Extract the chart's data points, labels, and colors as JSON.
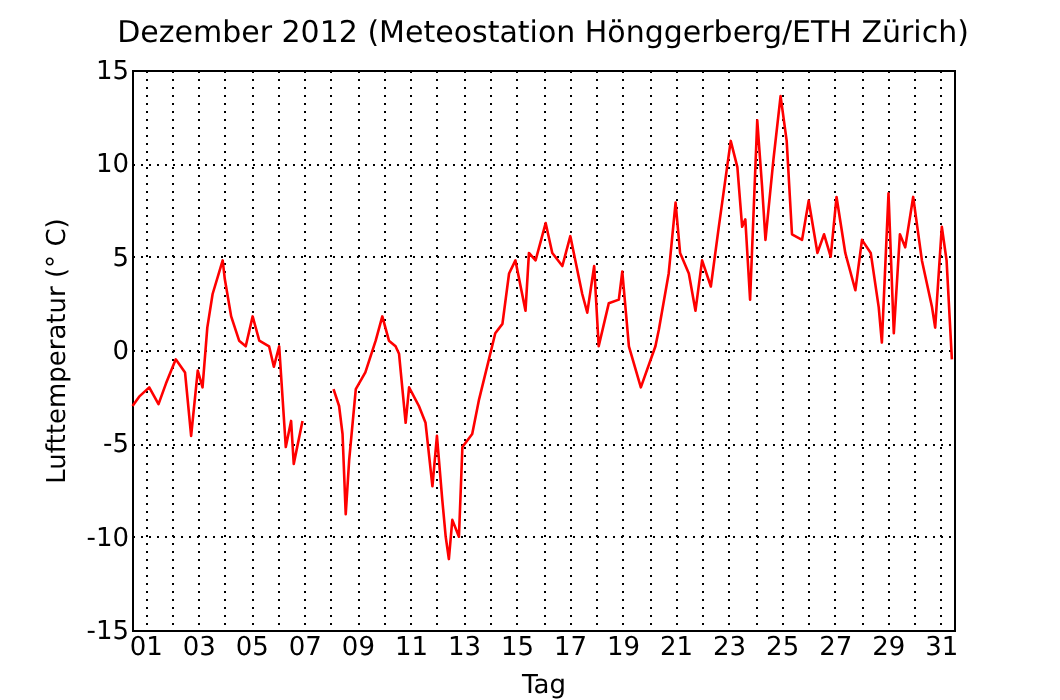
{
  "chart_data": {
    "type": "line",
    "title": "Dezember 2012  (Meteostation Hönggerberg/ETH Zürich)",
    "xlabel": "Tag",
    "ylabel": "Lufttemperatur (° C)",
    "x": [
      0.52,
      0.77,
      1.15,
      1.5,
      1.78,
      2.15,
      2.5,
      2.73,
      2.98,
      3.16,
      3.34,
      3.54,
      3.92,
      4.0,
      4.24,
      4.54,
      4.79,
      5.05,
      5.3,
      5.67,
      5.85,
      6.05,
      6.3,
      6.5,
      6.6,
      6.93,
      7.5,
      8.1,
      8.31,
      8.44,
      8.56,
      8.69,
      8.94,
      9.3,
      9.69,
      9.94,
      10.19,
      10.44,
      10.57,
      10.82,
      10.95,
      11.32,
      11.57,
      11.83,
      12.0,
      12.2,
      12.33,
      12.45,
      12.58,
      12.83,
      12.96,
      13.33,
      13.58,
      13.96,
      14.2,
      14.47,
      14.72,
      14.96,
      15.34,
      15.47,
      15.72,
      16.1,
      16.35,
      16.73,
      17.03,
      17.48,
      17.67,
      17.93,
      18.1,
      18.48,
      18.86,
      18.99,
      19.24,
      19.69,
      20.24,
      20.37,
      20.74,
      21.0,
      21.17,
      21.5,
      21.75,
      22.0,
      22.33,
      22.63,
      23.08,
      23.33,
      23.51,
      23.63,
      23.81,
      24.08,
      24.26,
      24.39,
      24.69,
      24.96,
      25.19,
      25.39,
      25.77,
      26.02,
      26.35,
      26.6,
      26.85,
      27.07,
      27.4,
      27.78,
      28.03,
      28.36,
      28.66,
      28.78,
      29.03,
      29.23,
      29.46,
      29.66,
      29.96,
      30.29,
      30.67,
      30.79,
      31.04,
      31.22,
      31.42
    ],
    "series": [
      {
        "color": "#ff0000",
        "values": [
          -3.0,
          -2.5,
          -2.0,
          -2.9,
          -1.8,
          -0.5,
          -1.2,
          -4.6,
          -1.1,
          -2.0,
          1.2,
          3.0,
          4.8,
          3.8,
          1.8,
          0.5,
          0.2,
          1.8,
          0.5,
          0.2,
          -0.9,
          0.2,
          -5.2,
          -3.8,
          -6.1,
          -3.8,
          null,
          -2.1,
          -3.0,
          -4.5,
          -8.8,
          -5.9,
          -2.1,
          -1.2,
          0.5,
          1.8,
          0.5,
          0.2,
          -0.2,
          -3.9,
          -2.0,
          -3.0,
          -3.9,
          -7.3,
          -4.6,
          -8.0,
          -10.0,
          -11.2,
          -9.1,
          -10.0,
          -5.2,
          -4.5,
          -2.7,
          -0.5,
          0.9,
          1.4,
          4.1,
          4.8,
          2.1,
          5.2,
          4.8,
          6.8,
          5.2,
          4.5,
          6.1,
          3.0,
          2.0,
          4.5,
          0.2,
          2.5,
          2.7,
          4.2,
          0.2,
          -2.0,
          0.2,
          1.1,
          4.1,
          7.9,
          5.2,
          4.1,
          2.1,
          4.8,
          3.4,
          6.6,
          11.2,
          9.8,
          6.6,
          7.0,
          2.7,
          12.3,
          8.8,
          5.9,
          10.2,
          13.6,
          11.2,
          6.2,
          5.9,
          8.0,
          5.2,
          6.2,
          5.0,
          8.2,
          5.2,
          3.2,
          5.9,
          5.2,
          2.3,
          0.4,
          8.4,
          0.9,
          6.2,
          5.5,
          8.2,
          4.8,
          2.3,
          1.2,
          6.6,
          4.8,
          -0.5
        ]
      }
    ],
    "xlim": [
      0.5,
      31.5
    ],
    "xticks": [
      {
        "value": 1,
        "label": "01"
      },
      {
        "value": 2,
        "label": null
      },
      {
        "value": 3,
        "label": "03"
      },
      {
        "value": 4,
        "label": null
      },
      {
        "value": 5,
        "label": "05"
      },
      {
        "value": 6,
        "label": null
      },
      {
        "value": 7,
        "label": "07"
      },
      {
        "value": 8,
        "label": null
      },
      {
        "value": 9,
        "label": "09"
      },
      {
        "value": 10,
        "label": null
      },
      {
        "value": 11,
        "label": "11"
      },
      {
        "value": 12,
        "label": null
      },
      {
        "value": 13,
        "label": "13"
      },
      {
        "value": 14,
        "label": null
      },
      {
        "value": 15,
        "label": "15"
      },
      {
        "value": 16,
        "label": null
      },
      {
        "value": 17,
        "label": "17"
      },
      {
        "value": 18,
        "label": null
      },
      {
        "value": 19,
        "label": "19"
      },
      {
        "value": 20,
        "label": null
      },
      {
        "value": 21,
        "label": "21"
      },
      {
        "value": 22,
        "label": null
      },
      {
        "value": 23,
        "label": "23"
      },
      {
        "value": 24,
        "label": null
      },
      {
        "value": 25,
        "label": "25"
      },
      {
        "value": 26,
        "label": null
      },
      {
        "value": 27,
        "label": "27"
      },
      {
        "value": 28,
        "label": null
      },
      {
        "value": 29,
        "label": "29"
      },
      {
        "value": 30,
        "label": null
      },
      {
        "value": 31,
        "label": "31"
      }
    ],
    "ylim": [
      -15,
      15
    ],
    "yticks": [
      -15,
      -10,
      -5,
      0,
      5,
      10,
      15
    ],
    "grid": true,
    "marker": "none",
    "line_style": "solid"
  }
}
